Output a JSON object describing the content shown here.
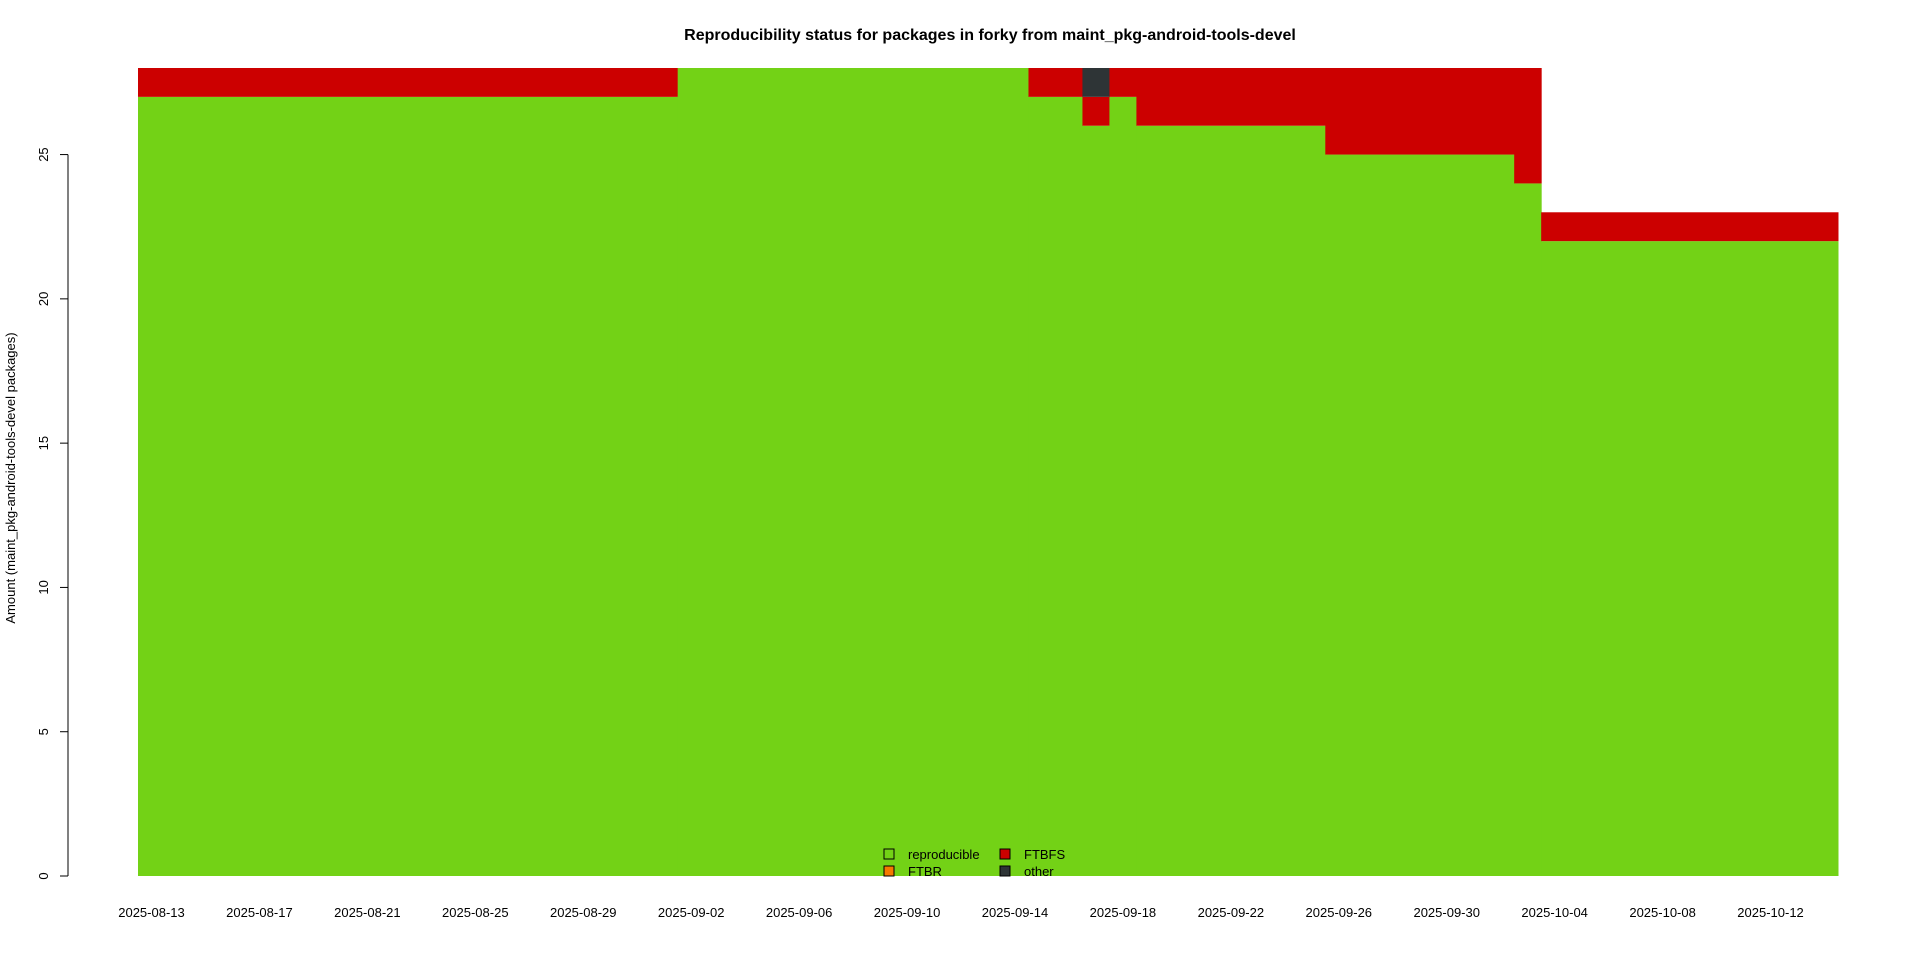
{
  "chart_data": {
    "type": "area",
    "stacked": true,
    "title": "Reproducibility status for packages in forky from maint_pkg-android-tools-devel",
    "xlabel": "",
    "ylabel": "Amount (maint_pkg-android-tools-devel packages)",
    "x_start": "2025-08-13",
    "x_end": "2025-10-15",
    "ylim": [
      0,
      28
    ],
    "y_ticks": [
      0,
      5,
      10,
      15,
      20,
      25
    ],
    "x_tick_labels": [
      "2025-08-13",
      "2025-08-17",
      "2025-08-21",
      "2025-08-25",
      "2025-08-29",
      "2025-09-02",
      "2025-09-06",
      "2025-09-10",
      "2025-09-14",
      "2025-09-18",
      "2025-09-22",
      "2025-09-26",
      "2025-09-30",
      "2025-10-04",
      "2025-10-08",
      "2025-10-12"
    ],
    "grid": false,
    "legend_position": "bottom-center",
    "series": [
      {
        "name": "reproducible",
        "color": "#73d216"
      },
      {
        "name": "FTBR",
        "color": "#f57900"
      },
      {
        "name": "FTBFS",
        "color": "#cc0000"
      },
      {
        "name": "other",
        "color": "#2e3436"
      }
    ],
    "segments": [
      {
        "from": "2025-08-13",
        "to": "2025-09-02",
        "reproducible": 27,
        "FTBR": 0,
        "FTBFS": 1,
        "other": 0
      },
      {
        "from": "2025-09-02",
        "to": "2025-09-15",
        "reproducible": 28,
        "FTBR": 0,
        "FTBFS": 0,
        "other": 0
      },
      {
        "from": "2025-09-15",
        "to": "2025-09-17",
        "reproducible": 27,
        "FTBR": 0,
        "FTBFS": 1,
        "other": 0
      },
      {
        "from": "2025-09-17",
        "to": "2025-09-18",
        "reproducible": 26,
        "FTBR": 0,
        "FTBFS": 1,
        "other": 1
      },
      {
        "from": "2025-09-18",
        "to": "2025-09-19",
        "reproducible": 27,
        "FTBR": 0,
        "FTBFS": 1,
        "other": 0
      },
      {
        "from": "2025-09-19",
        "to": "2025-09-26",
        "reproducible": 26,
        "FTBR": 0,
        "FTBFS": 2,
        "other": 0
      },
      {
        "from": "2025-09-26",
        "to": "2025-10-03",
        "reproducible": 25,
        "FTBR": 0,
        "FTBFS": 3,
        "other": 0
      },
      {
        "from": "2025-10-03",
        "to": "2025-10-04",
        "reproducible": 24,
        "FTBR": 0,
        "FTBFS": 4,
        "other": 0
      },
      {
        "from": "2025-10-04",
        "to": "2025-10-15",
        "reproducible": 22,
        "FTBR": 0,
        "FTBFS": 1,
        "other": 0
      }
    ]
  }
}
